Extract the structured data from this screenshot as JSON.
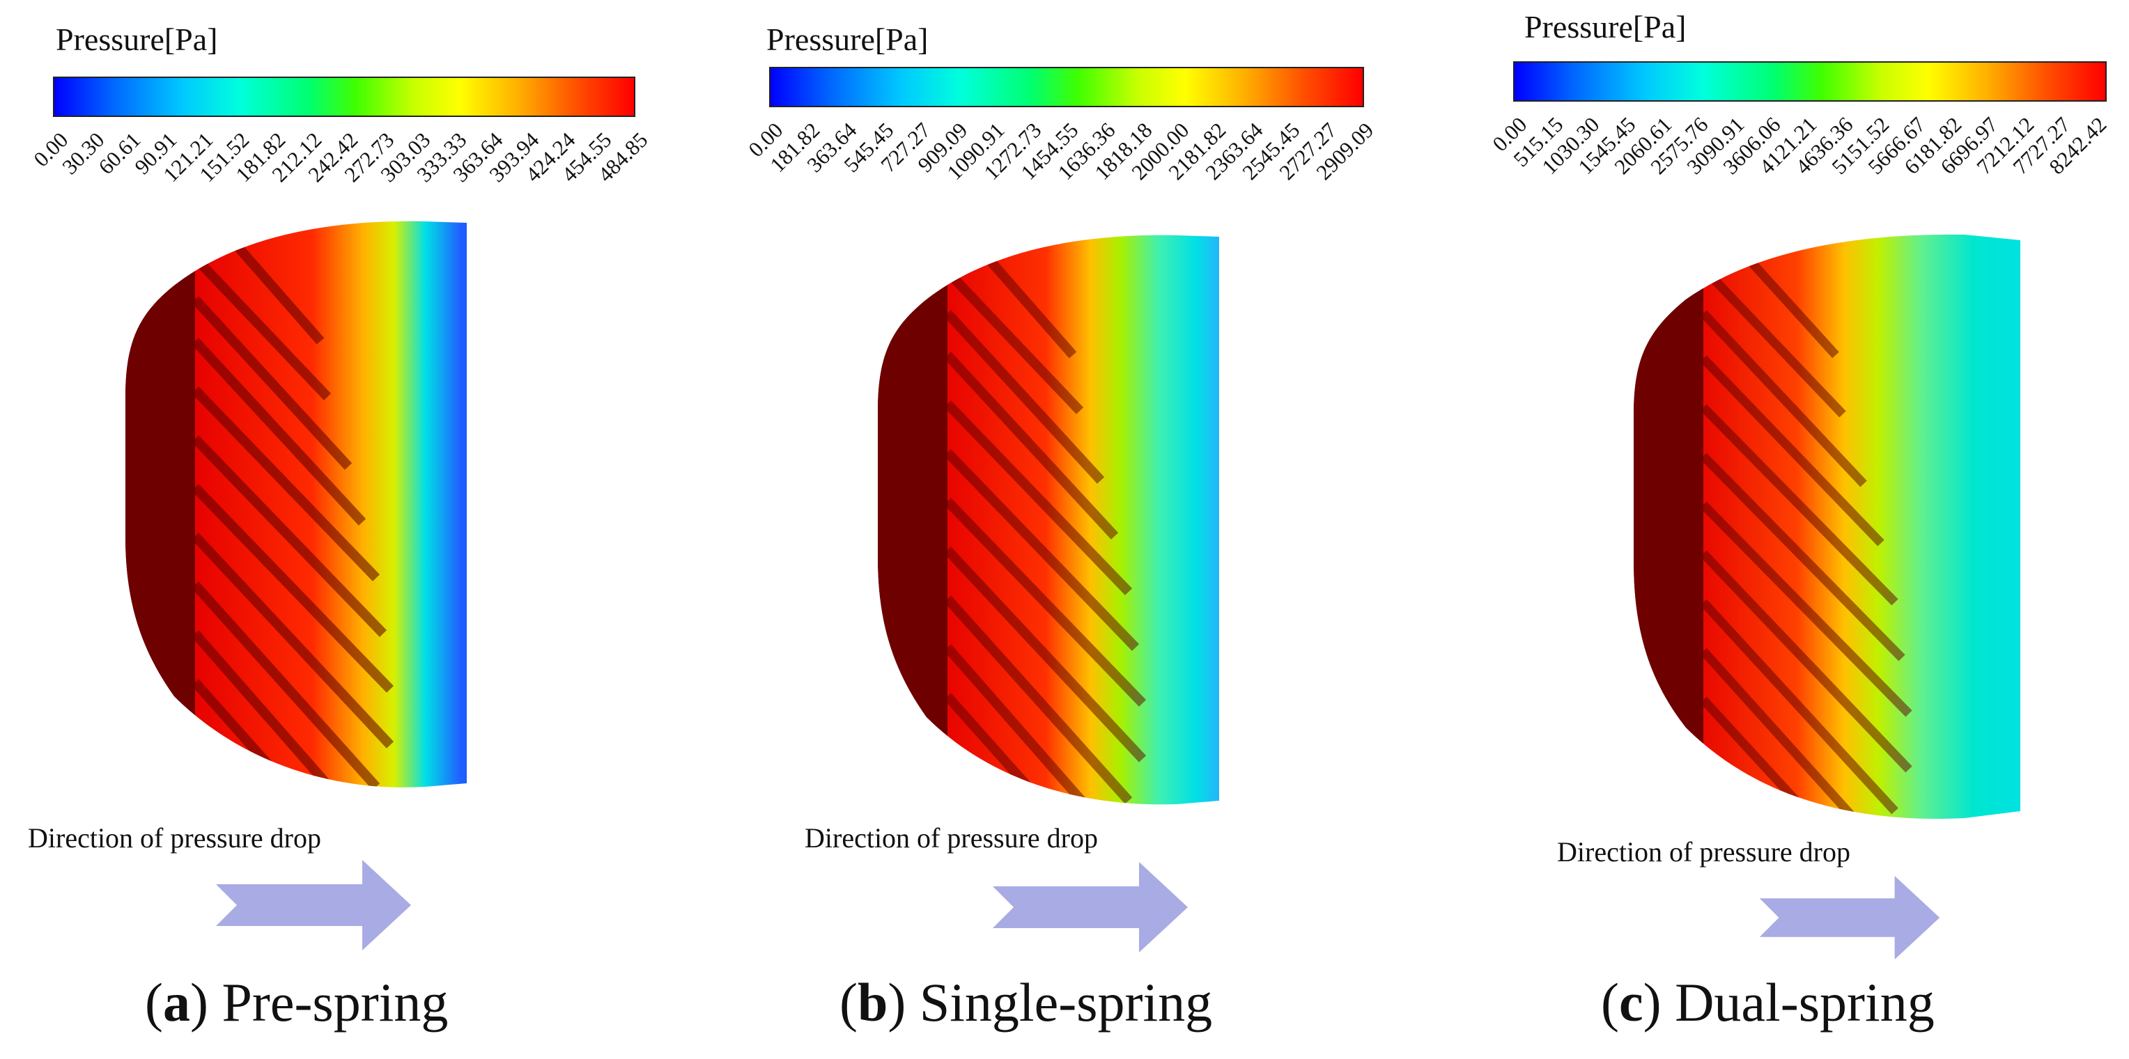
{
  "colors": {
    "dark_red": "#6e0000",
    "red": "#e60000",
    "orange": "#ff6a00",
    "yellow": "#f6e000",
    "green": "#8ee000",
    "cyan": "#00e0e6",
    "blue": "#1a4dff",
    "arrow": "#a9abe4"
  },
  "panels": [
    {
      "legend_title": "Pressure[Pa]",
      "ticks": [
        "0.00",
        "30.30",
        "60.61",
        "90.91",
        "121.21",
        "151.52",
        "181.82",
        "212.12",
        "242.42",
        "272.73",
        "303.03",
        "333.33",
        "363.64",
        "393.94",
        "424.24",
        "454.55",
        "484.85"
      ],
      "direction_label": "Direction of pressure drop",
      "caption_letter": "a",
      "caption_text": "Pre-spring"
    },
    {
      "legend_title": "Pressure[Pa]",
      "ticks": [
        "0.00",
        "181.82",
        "363.64",
        "545.45",
        "727.27",
        "909.09",
        "1090.91",
        "1272.73",
        "1454.55",
        "1636.36",
        "1818.18",
        "2000.00",
        "2181.82",
        "2363.64",
        "2545.45",
        "2727.27",
        "2909.09"
      ],
      "direction_label": "Direction of pressure drop",
      "caption_letter": "b",
      "caption_text": "Single-spring"
    },
    {
      "legend_title": "Pressure[Pa]",
      "ticks": [
        "0.00",
        "515.15",
        "1030.30",
        "1545.45",
        "2060.61",
        "2575.76",
        "3090.91",
        "3606.06",
        "4121.21",
        "4636.36",
        "5151.52",
        "5666.67",
        "6181.82",
        "6696.97",
        "7212.12",
        "7727.27",
        "8242.42"
      ],
      "direction_label": "Direction of pressure drop",
      "caption_letter": "c",
      "caption_text": "Dual-spring"
    }
  ]
}
